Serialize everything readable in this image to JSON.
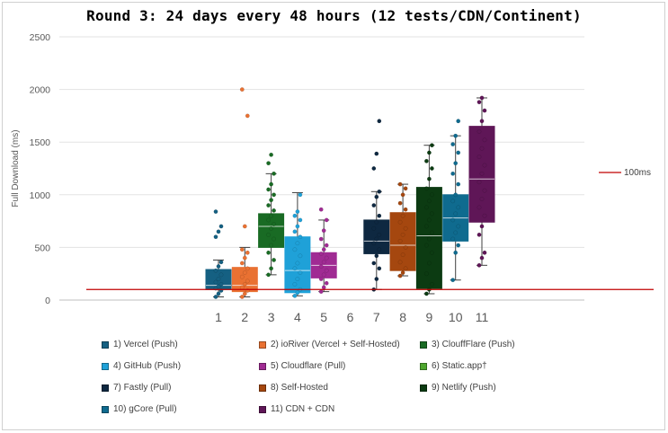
{
  "chart_data": {
    "type": "box",
    "title": "Round 3: 24 days every 48 hours (12 tests/CDN/Continent)",
    "ylabel": "Full Download (ms)",
    "xlabel": "",
    "ylim": [
      0,
      2500
    ],
    "yticks": [
      0,
      500,
      1000,
      1500,
      2000,
      2500
    ],
    "categories": [
      "1",
      "2",
      "3",
      "4",
      "5",
      "6",
      "7",
      "8",
      "9",
      "10",
      "11"
    ],
    "reference_line": {
      "label": "100ms",
      "value": 100,
      "color": "#c00000"
    },
    "series": [
      {
        "name": "1) Vercel (Push)",
        "category": "1",
        "color": "#156082",
        "q1": 100,
        "median": 140,
        "q3": 290,
        "whisker_low": 30,
        "whisker_high": 380,
        "points": [
          30,
          60,
          90,
          110,
          130,
          150,
          170,
          200,
          240,
          280,
          320,
          360,
          600,
          650,
          700,
          840
        ]
      },
      {
        "name": "2) ioRiver (Vercel + Self-Hosted)",
        "category": "2",
        "color": "#e97132",
        "q1": 80,
        "median": 140,
        "q3": 310,
        "whisker_low": 30,
        "whisker_high": 500,
        "points": [
          30,
          60,
          90,
          120,
          150,
          180,
          220,
          260,
          300,
          350,
          400,
          450,
          480,
          700,
          1750,
          2000
        ]
      },
      {
        "name": "3) ClouffFlare (Push)",
        "category": "3",
        "color": "#196b24",
        "q1": 500,
        "median": 700,
        "q3": 820,
        "whisker_low": 240,
        "whisker_high": 1200,
        "points": [
          240,
          300,
          380,
          450,
          520,
          580,
          620,
          680,
          720,
          760,
          800,
          850,
          900,
          950,
          1000,
          1050,
          1100,
          1200,
          1300,
          1380
        ]
      },
      {
        "name": "4) GitHub (Push)",
        "category": "4",
        "color": "#1fa1d8",
        "q1": 70,
        "median": 280,
        "q3": 600,
        "whisker_low": 40,
        "whisker_high": 1020,
        "points": [
          40,
          70,
          100,
          150,
          200,
          260,
          300,
          350,
          420,
          480,
          540,
          600,
          650,
          700,
          760,
          800,
          840,
          1000
        ]
      },
      {
        "name": "5) Cloudflare (Pull)",
        "category": "5",
        "color": "#a02b93",
        "q1": 210,
        "median": 330,
        "q3": 450,
        "whisker_low": 80,
        "whisker_high": 760,
        "points": [
          80,
          120,
          160,
          200,
          240,
          280,
          320,
          360,
          400,
          440,
          480,
          520,
          580,
          660,
          760,
          860
        ]
      },
      {
        "name": "6) Static.app†",
        "category": "6",
        "color": "#4ea72e",
        "q1": null,
        "median": null,
        "q3": null,
        "whisker_low": null,
        "whisker_high": null,
        "points": []
      },
      {
        "name": "7) Fastly (Pull)",
        "category": "7",
        "color": "#0e2841",
        "q1": 440,
        "median": 560,
        "q3": 760,
        "whisker_low": 100,
        "whisker_high": 1030,
        "points": [
          100,
          200,
          300,
          350,
          420,
          480,
          540,
          580,
          620,
          680,
          740,
          800,
          900,
          980,
          1030,
          1250,
          1390,
          1700
        ]
      },
      {
        "name": "8) Self-Hosted",
        "category": "8",
        "color": "#a5470f",
        "q1": 280,
        "median": 520,
        "q3": 830,
        "whisker_low": 230,
        "whisker_high": 1100,
        "points": [
          230,
          260,
          300,
          360,
          430,
          500,
          560,
          620,
          680,
          740,
          800,
          860,
          920,
          1000,
          1060,
          1100
        ]
      },
      {
        "name": "9) Netlify (Push)",
        "category": "9",
        "color": "#0c3b12",
        "q1": 110,
        "median": 610,
        "q3": 1070,
        "whisker_low": 60,
        "whisker_high": 1470,
        "points": [
          60,
          100,
          150,
          250,
          350,
          450,
          520,
          580,
          640,
          700,
          760,
          820,
          880,
          940,
          1000,
          1060,
          1150,
          1250,
          1320,
          1400,
          1470
        ]
      },
      {
        "name": "10) gCore (Pull)",
        "category": "10",
        "color": "#0f6b8f",
        "q1": 560,
        "median": 780,
        "q3": 1000,
        "whisker_low": 190,
        "whisker_high": 1560,
        "points": [
          190,
          450,
          520,
          580,
          640,
          700,
          760,
          820,
          880,
          940,
          1000,
          1100,
          1200,
          1300,
          1400,
          1480,
          1560,
          1700
        ]
      },
      {
        "name": "11) CDN + CDN",
        "category": "11",
        "color": "#5f1657",
        "q1": 740,
        "median": 1150,
        "q3": 1650,
        "whisker_low": 330,
        "whisker_high": 1920,
        "points": [
          330,
          400,
          450,
          620,
          700,
          800,
          880,
          960,
          1040,
          1120,
          1200,
          1280,
          1360,
          1440,
          1520,
          1600,
          1700,
          1800,
          1880,
          1920
        ]
      }
    ]
  }
}
